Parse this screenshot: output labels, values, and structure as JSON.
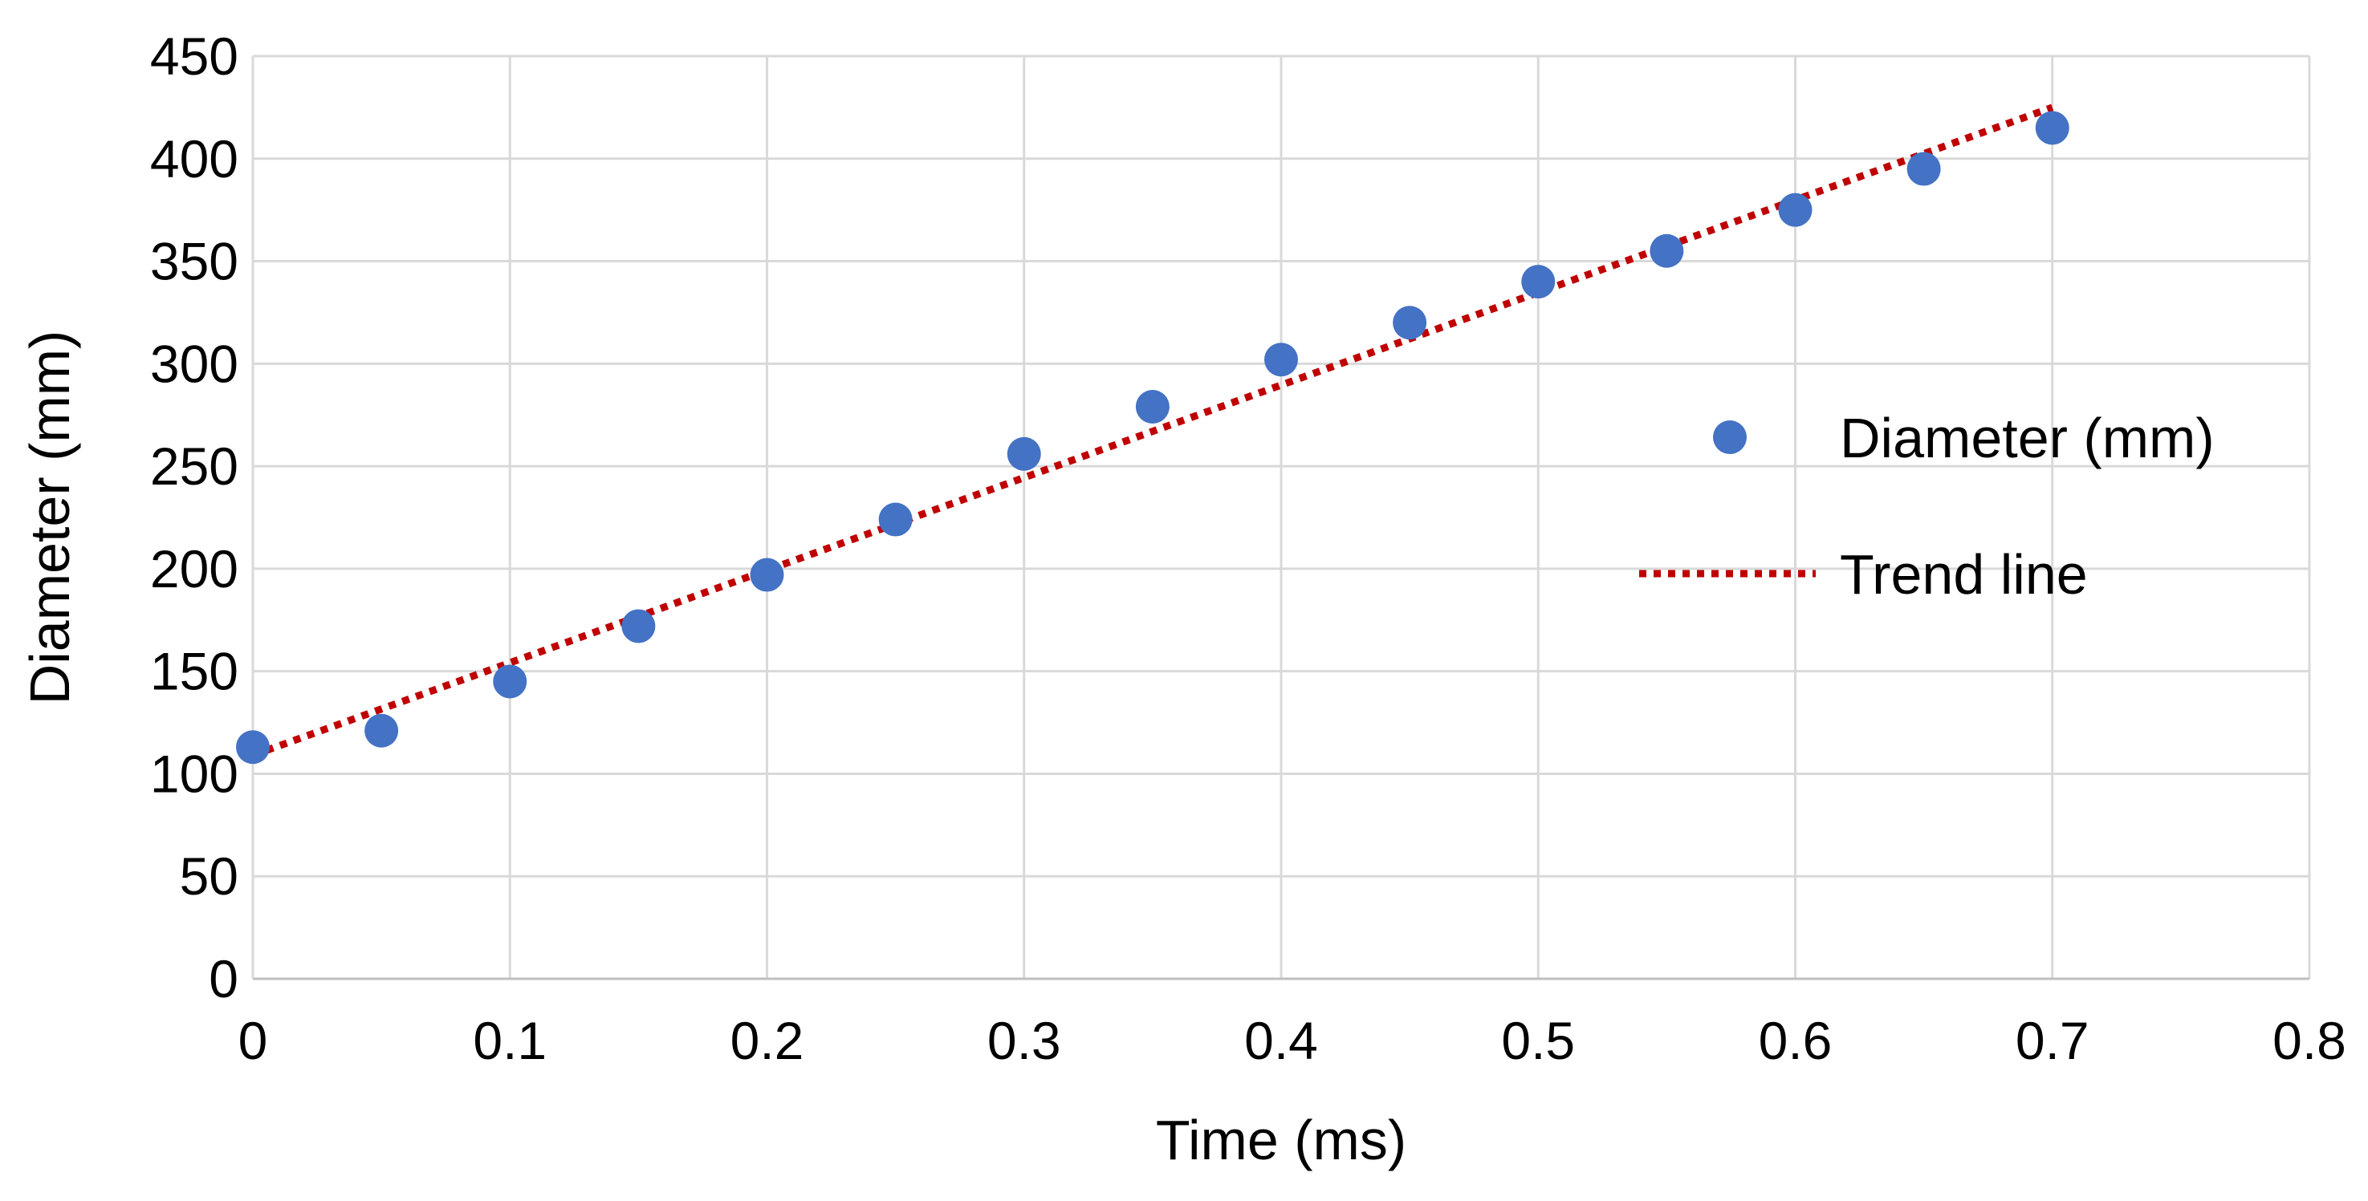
{
  "chart_data": {
    "type": "scatter",
    "title": "",
    "xlabel": "Time (ms)",
    "ylabel": "Diameter (mm)",
    "xlim": [
      0,
      0.8
    ],
    "ylim": [
      0,
      450
    ],
    "x_ticks": [
      0,
      0.1,
      0.2,
      0.3,
      0.4,
      0.5,
      0.6,
      0.7,
      0.8
    ],
    "x_tick_labels": [
      "0",
      "0.1",
      "0.2",
      "0.3",
      "0.4",
      "0.5",
      "0.6",
      "0.7",
      "0.8"
    ],
    "y_ticks": [
      0,
      50,
      100,
      150,
      200,
      250,
      300,
      350,
      400,
      450
    ],
    "y_tick_labels": [
      "0",
      "50",
      "100",
      "150",
      "200",
      "250",
      "300",
      "350",
      "400",
      "450"
    ],
    "grid": true,
    "legend_position": "right",
    "series": [
      {
        "name": "Diameter (mm)",
        "kind": "scatter",
        "color": "#4472C4",
        "x": [
          0,
          0.05,
          0.1,
          0.15,
          0.2,
          0.25,
          0.3,
          0.35,
          0.4,
          0.45,
          0.5,
          0.55,
          0.6,
          0.65,
          0.7
        ],
        "y": [
          113,
          121,
          145,
          172,
          197,
          224,
          256,
          279,
          302,
          320,
          340,
          355,
          375,
          395,
          415
        ]
      },
      {
        "name": "Trend line",
        "kind": "line",
        "style": "dotted",
        "color": "#C00000",
        "x": [
          0,
          0.7
        ],
        "y": [
          109,
          425
        ]
      }
    ]
  }
}
